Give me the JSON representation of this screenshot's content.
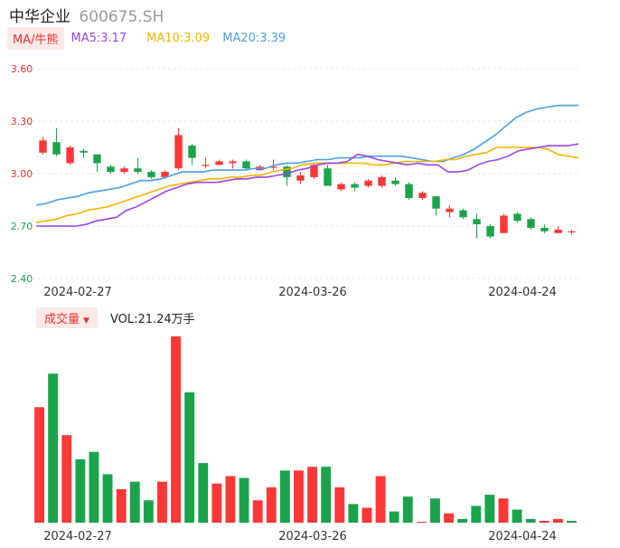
{
  "header": {
    "name": "中华企业",
    "code": "600675.SH"
  },
  "ma_bar": {
    "button": "MA/牛熊",
    "ma5": "MA5:3.17",
    "ma10": "MA10:3.09",
    "ma20": "MA20:3.39"
  },
  "vol_bar": {
    "button": "成交量",
    "vol": "VOL:21.24万手"
  },
  "colors": {
    "up": "#fe3737",
    "down": "#1aa34a",
    "ma5": "#9b44e8",
    "ma10": "#f0b400",
    "ma20": "#4a9ee8"
  },
  "chart_data": {
    "type": "candlestick",
    "price_axis": {
      "ticks": [
        "3.60",
        "3.30",
        "3.00",
        "2.70",
        "2.40"
      ],
      "ylim": [
        2.4,
        3.6
      ]
    },
    "date_labels": [
      "2024-02-27",
      "2024-03-26",
      "2024-04-24"
    ],
    "candles": [
      {
        "o": 3.12,
        "c": 3.19,
        "h": 3.21,
        "l": 3.11
      },
      {
        "o": 3.18,
        "c": 3.11,
        "h": 3.26,
        "l": 3.1
      },
      {
        "o": 3.06,
        "c": 3.15,
        "h": 3.16,
        "l": 3.05
      },
      {
        "o": 3.13,
        "c": 3.12,
        "h": 3.14,
        "l": 3.09
      },
      {
        "o": 3.11,
        "c": 3.06,
        "h": 3.11,
        "l": 3.01
      },
      {
        "o": 3.04,
        "c": 3.01,
        "h": 3.05,
        "l": 3.0
      },
      {
        "o": 3.01,
        "c": 3.03,
        "h": 3.04,
        "l": 3.0
      },
      {
        "o": 3.03,
        "c": 3.01,
        "h": 3.09,
        "l": 3.0
      },
      {
        "o": 3.01,
        "c": 2.98,
        "h": 3.02,
        "l": 2.97
      },
      {
        "o": 2.98,
        "c": 3.01,
        "h": 3.02,
        "l": 2.97
      },
      {
        "o": 3.03,
        "c": 3.22,
        "h": 3.26,
        "l": 3.02
      },
      {
        "o": 3.16,
        "c": 3.09,
        "h": 3.17,
        "l": 3.05
      },
      {
        "o": 3.05,
        "c": 3.05,
        "h": 3.09,
        "l": 3.03
      },
      {
        "o": 3.05,
        "c": 3.07,
        "h": 3.08,
        "l": 3.05
      },
      {
        "o": 3.06,
        "c": 3.07,
        "h": 3.08,
        "l": 3.03
      },
      {
        "o": 3.07,
        "c": 3.03,
        "h": 3.08,
        "l": 3.02
      },
      {
        "o": 3.02,
        "c": 3.04,
        "h": 3.05,
        "l": 3.02
      },
      {
        "o": 3.04,
        "c": 3.04,
        "h": 3.08,
        "l": 3.02
      },
      {
        "o": 3.04,
        "c": 2.98,
        "h": 3.05,
        "l": 2.93
      },
      {
        "o": 2.96,
        "c": 2.99,
        "h": 3.01,
        "l": 2.94
      },
      {
        "o": 2.98,
        "c": 3.05,
        "h": 3.06,
        "l": 2.97
      },
      {
        "o": 3.03,
        "c": 2.93,
        "h": 3.05,
        "l": 2.93
      },
      {
        "o": 2.91,
        "c": 2.94,
        "h": 2.95,
        "l": 2.9
      },
      {
        "o": 2.94,
        "c": 2.92,
        "h": 2.95,
        "l": 2.9
      },
      {
        "o": 2.93,
        "c": 2.96,
        "h": 2.97,
        "l": 2.92
      },
      {
        "o": 2.93,
        "c": 2.98,
        "h": 2.99,
        "l": 2.92
      },
      {
        "o": 2.96,
        "c": 2.94,
        "h": 2.98,
        "l": 2.93
      },
      {
        "o": 2.94,
        "c": 2.86,
        "h": 2.95,
        "l": 2.85
      },
      {
        "o": 2.86,
        "c": 2.89,
        "h": 2.9,
        "l": 2.85
      },
      {
        "o": 2.87,
        "c": 2.8,
        "h": 2.87,
        "l": 2.76
      },
      {
        "o": 2.78,
        "c": 2.8,
        "h": 2.82,
        "l": 2.75
      },
      {
        "o": 2.79,
        "c": 2.75,
        "h": 2.8,
        "l": 2.74
      },
      {
        "o": 2.74,
        "c": 2.71,
        "h": 2.77,
        "l": 2.63
      },
      {
        "o": 2.7,
        "c": 2.64,
        "h": 2.71,
        "l": 2.63
      },
      {
        "o": 2.66,
        "c": 2.76,
        "h": 2.77,
        "l": 2.66
      },
      {
        "o": 2.77,
        "c": 2.73,
        "h": 2.78,
        "l": 2.72
      },
      {
        "o": 2.74,
        "c": 2.69,
        "h": 2.75,
        "l": 2.68
      },
      {
        "o": 2.69,
        "c": 2.67,
        "h": 2.71,
        "l": 2.66
      },
      {
        "o": 2.66,
        "c": 2.68,
        "h": 2.7,
        "l": 2.66
      },
      {
        "o": 2.67,
        "c": 2.67,
        "h": 2.68,
        "l": 2.65
      }
    ],
    "ma5": [
      2.7,
      2.7,
      2.7,
      2.7,
      2.7,
      2.71,
      2.73,
      2.74,
      2.75,
      2.79,
      2.81,
      2.84,
      2.87,
      2.9,
      2.92,
      2.94,
      2.95,
      2.95,
      2.95,
      2.96,
      2.97,
      2.97,
      2.98,
      2.98,
      2.99,
      3.0,
      3.02,
      3.03,
      3.05,
      3.06,
      3.06,
      3.07,
      3.11,
      3.1,
      3.08,
      3.07,
      3.06,
      3.05,
      3.06,
      3.05,
      3.05,
      3.01,
      3.01,
      3.02,
      3.05,
      3.07,
      3.08,
      3.1,
      3.13,
      3.14,
      3.15,
      3.16,
      3.16,
      3.16,
      3.17
    ],
    "ma10": [
      2.72,
      2.73,
      2.74,
      2.76,
      2.77,
      2.79,
      2.8,
      2.81,
      2.83,
      2.85,
      2.87,
      2.89,
      2.91,
      2.93,
      2.94,
      2.95,
      2.96,
      2.97,
      2.97,
      2.98,
      2.98,
      2.99,
      2.99,
      3.01,
      3.02,
      3.03,
      3.05,
      3.06,
      3.06,
      3.06,
      3.06,
      3.06,
      3.06,
      3.05,
      3.05,
      3.06,
      3.07,
      3.07,
      3.07,
      3.07,
      3.08,
      3.08,
      3.1,
      3.11,
      3.12,
      3.15,
      3.15,
      3.15,
      3.15,
      3.15,
      3.14,
      3.11,
      3.1,
      3.09
    ],
    "ma20": [
      2.82,
      2.83,
      2.85,
      2.86,
      2.87,
      2.89,
      2.9,
      2.91,
      2.92,
      2.94,
      2.96,
      2.96,
      2.97,
      2.99,
      3.01,
      3.01,
      3.01,
      3.02,
      3.02,
      3.02,
      3.02,
      3.03,
      3.03,
      3.05,
      3.06,
      3.06,
      3.07,
      3.08,
      3.08,
      3.09,
      3.09,
      3.09,
      3.1,
      3.1,
      3.1,
      3.1,
      3.09,
      3.08,
      3.07,
      3.07,
      3.09,
      3.11,
      3.14,
      3.18,
      3.22,
      3.27,
      3.32,
      3.35,
      3.37,
      3.38,
      3.39,
      3.39,
      3.39
    ],
    "volume": [
      {
        "v": 0.62,
        "up": true
      },
      {
        "v": 0.8,
        "up": false
      },
      {
        "v": 0.47,
        "up": true
      },
      {
        "v": 0.34,
        "up": false
      },
      {
        "v": 0.38,
        "up": false
      },
      {
        "v": 0.26,
        "up": false
      },
      {
        "v": 0.18,
        "up": true
      },
      {
        "v": 0.22,
        "up": false
      },
      {
        "v": 0.12,
        "up": false
      },
      {
        "v": 0.22,
        "up": true
      },
      {
        "v": 1.0,
        "up": true
      },
      {
        "v": 0.7,
        "up": false
      },
      {
        "v": 0.32,
        "up": false
      },
      {
        "v": 0.21,
        "up": true
      },
      {
        "v": 0.25,
        "up": true
      },
      {
        "v": 0.24,
        "up": false
      },
      {
        "v": 0.12,
        "up": true
      },
      {
        "v": 0.19,
        "up": true
      },
      {
        "v": 0.28,
        "up": false
      },
      {
        "v": 0.28,
        "up": true
      },
      {
        "v": 0.3,
        "up": true
      },
      {
        "v": 0.3,
        "up": false
      },
      {
        "v": 0.19,
        "up": true
      },
      {
        "v": 0.1,
        "up": false
      },
      {
        "v": 0.08,
        "up": true
      },
      {
        "v": 0.25,
        "up": true
      },
      {
        "v": 0.06,
        "up": false
      },
      {
        "v": 0.14,
        "up": false
      },
      {
        "v": 0.005,
        "up": true
      },
      {
        "v": 0.13,
        "up": false
      },
      {
        "v": 0.05,
        "up": true
      },
      {
        "v": 0.02,
        "up": false
      },
      {
        "v": 0.09,
        "up": false
      },
      {
        "v": 0.15,
        "up": false
      },
      {
        "v": 0.13,
        "up": true
      },
      {
        "v": 0.07,
        "up": false
      },
      {
        "v": 0.02,
        "up": false
      },
      {
        "v": 0.01,
        "up": true
      },
      {
        "v": 0.02,
        "up": true
      },
      {
        "v": 0.01,
        "up": false
      }
    ]
  }
}
